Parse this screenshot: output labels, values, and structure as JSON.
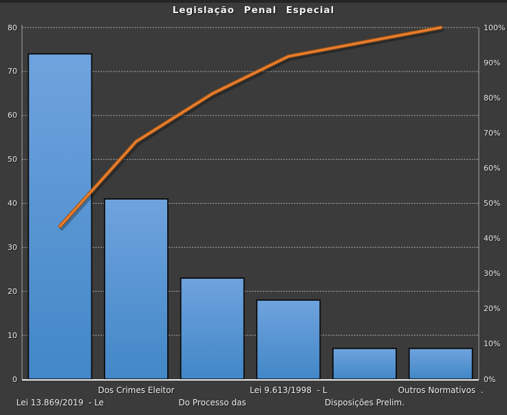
{
  "chart_data": {
    "type": "bar",
    "subtype": "pareto (bars + cumulative % line)",
    "title": "Legislação Penal Especial",
    "legend": "none",
    "grid": "horizontal-dashed",
    "categories": [
      "Lei 13.869/2019  - Le",
      "Dos Crimes Eleitor",
      "Do Processo das",
      "Lei 9.613/1998  - L",
      "Disposições Prelim.",
      "Outros Normativos  ."
    ],
    "series": [
      {
        "name": "bar-series",
        "kind": "bar",
        "axis": "left",
        "values": [
          74,
          41,
          23,
          18,
          7,
          7
        ]
      },
      {
        "name": "cumulative-percent-line",
        "kind": "line",
        "axis": "right",
        "values": [
          43.5,
          67.6,
          81.2,
          91.8,
          95.9,
          100
        ]
      }
    ],
    "left_axis": {
      "min": 0,
      "max": 80,
      "step": 10,
      "ticks": [
        "0",
        "10",
        "20",
        "30",
        "40",
        "50",
        "60",
        "70",
        "80"
      ]
    },
    "right_axis": {
      "min": 0,
      "max": 100,
      "step": 10,
      "ticks": [
        "0%",
        "10%",
        "20%",
        "30%",
        "40%",
        "50%",
        "60%",
        "70%",
        "80%",
        "90%",
        "100%"
      ]
    },
    "colors": {
      "background": "#3b3b3b",
      "bar_top": "#6FA3DE",
      "bar_bottom": "#4287C7",
      "bar_border": "#0b0b0b",
      "line_core": "#E87D2E",
      "line_edge": "#9A5316",
      "grid": "#cfcfcf",
      "axis_side": "#a6a6a6",
      "axis_bottom": "#ededed",
      "text": "#e9e9e9"
    }
  }
}
